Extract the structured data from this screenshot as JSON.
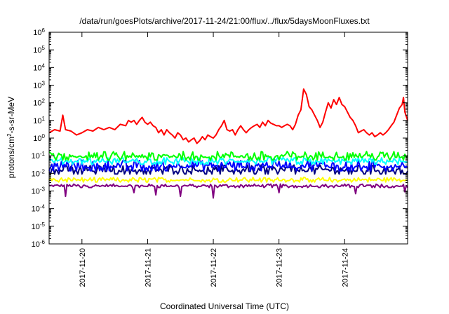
{
  "chart_data": {
    "type": "line",
    "title": "/data/run/goesPlots/archive/2017-11-24/21:00/flux/../flux/5daysMoonFluxes.txt",
    "xlabel": "Coordinated Universal Time (UTC)",
    "ylabel_parts": {
      "pre": "protons/cm",
      "sup": "2",
      "post": "-s-sr-MeV"
    },
    "y_scale": "log",
    "ylim": [
      1e-06,
      1000000.0
    ],
    "y_ticks": [
      {
        "base": "10",
        "exp": "-6",
        "value": 1e-06
      },
      {
        "base": "10",
        "exp": "-5",
        "value": 1e-05
      },
      {
        "base": "10",
        "exp": "-4",
        "value": 0.0001
      },
      {
        "base": "10",
        "exp": "-3",
        "value": 0.001
      },
      {
        "base": "10",
        "exp": "-2",
        "value": 0.01
      },
      {
        "base": "10",
        "exp": "-1",
        "value": 0.1
      },
      {
        "base": "10",
        "exp": "0",
        "value": 1
      },
      {
        "base": "10",
        "exp": "1",
        "value": 10
      },
      {
        "base": "10",
        "exp": "2",
        "value": 100
      },
      {
        "base": "10",
        "exp": "3",
        "value": 1000
      },
      {
        "base": "10",
        "exp": "4",
        "value": 10000
      },
      {
        "base": "10",
        "exp": "5",
        "value": 100000
      },
      {
        "base": "10",
        "exp": "6",
        "value": 1000000
      }
    ],
    "xlim": [
      "2017-11-19T12:00",
      "2017-11-24T23:00"
    ],
    "x_ticks": [
      {
        "label": "2017-11-20",
        "value": "2017-11-20T00:00"
      },
      {
        "label": "2017-11-21",
        "value": "2017-11-21T00:00"
      },
      {
        "label": "2017-11-22",
        "value": "2017-11-22T00:00"
      },
      {
        "label": "2017-11-23",
        "value": "2017-11-23T00:00"
      },
      {
        "label": "2017-11-24",
        "value": "2017-11-24T00:00"
      }
    ],
    "grid": false,
    "legend": "none",
    "series": [
      {
        "color": "#ff0000",
        "width": 2,
        "points": [
          [
            "2017-11-19T12:00",
            2
          ],
          [
            "2017-11-19T14:00",
            3
          ],
          [
            "2017-11-19T16:00",
            2.5
          ],
          [
            "2017-11-19T17:00",
            20
          ],
          [
            "2017-11-19T18:00",
            3
          ],
          [
            "2017-11-19T20:00",
            2.5
          ],
          [
            "2017-11-19T22:00",
            1.5
          ],
          [
            "2017-11-20T00:00",
            2
          ],
          [
            "2017-11-20T02:00",
            3
          ],
          [
            "2017-11-20T04:00",
            2.5
          ],
          [
            "2017-11-20T06:00",
            4
          ],
          [
            "2017-11-20T08:00",
            3
          ],
          [
            "2017-11-20T10:00",
            4
          ],
          [
            "2017-11-20T12:00",
            3
          ],
          [
            "2017-11-20T14:00",
            6
          ],
          [
            "2017-11-20T16:00",
            5
          ],
          [
            "2017-11-20T17:00",
            10
          ],
          [
            "2017-11-20T18:00",
            8
          ],
          [
            "2017-11-20T19:00",
            10
          ],
          [
            "2017-11-20T20:00",
            6
          ],
          [
            "2017-11-20T21:00",
            10
          ],
          [
            "2017-11-20T22:00",
            15
          ],
          [
            "2017-11-20T23:00",
            8
          ],
          [
            "2017-11-21T00:00",
            6
          ],
          [
            "2017-11-21T01:00",
            8
          ],
          [
            "2017-11-21T02:00",
            5
          ],
          [
            "2017-11-21T03:00",
            4
          ],
          [
            "2017-11-21T04:00",
            2
          ],
          [
            "2017-11-21T05:00",
            3
          ],
          [
            "2017-11-21T06:00",
            1.5
          ],
          [
            "2017-11-21T07:00",
            3
          ],
          [
            "2017-11-21T08:00",
            2
          ],
          [
            "2017-11-21T09:00",
            1.5
          ],
          [
            "2017-11-21T10:00",
            1
          ],
          [
            "2017-11-21T11:00",
            2
          ],
          [
            "2017-11-21T12:00",
            1.5
          ],
          [
            "2017-11-21T13:00",
            0.8
          ],
          [
            "2017-11-21T14:00",
            1
          ],
          [
            "2017-11-21T15:00",
            0.6
          ],
          [
            "2017-11-21T16:00",
            0.8
          ],
          [
            "2017-11-21T17:00",
            1
          ],
          [
            "2017-11-21T18:00",
            0.5
          ],
          [
            "2017-11-21T19:00",
            0.7
          ],
          [
            "2017-11-21T20:00",
            1.2
          ],
          [
            "2017-11-21T21:00",
            0.8
          ],
          [
            "2017-11-21T22:00",
            1.5
          ],
          [
            "2017-11-21T23:00",
            1.2
          ],
          [
            "2017-11-22T00:00",
            1
          ],
          [
            "2017-11-22T01:00",
            1.5
          ],
          [
            "2017-11-22T02:00",
            3
          ],
          [
            "2017-11-22T03:00",
            5
          ],
          [
            "2017-11-22T04:00",
            10
          ],
          [
            "2017-11-22T05:00",
            3
          ],
          [
            "2017-11-22T06:00",
            2.5
          ],
          [
            "2017-11-22T07:00",
            3
          ],
          [
            "2017-11-22T08:00",
            1.5
          ],
          [
            "2017-11-22T09:00",
            3
          ],
          [
            "2017-11-22T10:00",
            5
          ],
          [
            "2017-11-22T11:00",
            3
          ],
          [
            "2017-11-22T12:00",
            2
          ],
          [
            "2017-11-22T13:00",
            3
          ],
          [
            "2017-11-22T14:00",
            4
          ],
          [
            "2017-11-22T15:00",
            5
          ],
          [
            "2017-11-22T16:00",
            6
          ],
          [
            "2017-11-22T17:00",
            4
          ],
          [
            "2017-11-22T18:00",
            8
          ],
          [
            "2017-11-22T19:00",
            5
          ],
          [
            "2017-11-22T20:00",
            10
          ],
          [
            "2017-11-22T21:00",
            7
          ],
          [
            "2017-11-22T22:00",
            6
          ],
          [
            "2017-11-22T23:00",
            5
          ],
          [
            "2017-11-23T00:00",
            5
          ],
          [
            "2017-11-23T01:00",
            4
          ],
          [
            "2017-11-23T02:00",
            5
          ],
          [
            "2017-11-23T03:00",
            6
          ],
          [
            "2017-11-23T04:00",
            5
          ],
          [
            "2017-11-23T05:00",
            3
          ],
          [
            "2017-11-23T06:00",
            6
          ],
          [
            "2017-11-23T07:00",
            20
          ],
          [
            "2017-11-23T08:00",
            40
          ],
          [
            "2017-11-23T09:00",
            600
          ],
          [
            "2017-11-23T10:00",
            300
          ],
          [
            "2017-11-23T11:00",
            60
          ],
          [
            "2017-11-23T12:00",
            40
          ],
          [
            "2017-11-23T13:00",
            20
          ],
          [
            "2017-11-23T14:00",
            10
          ],
          [
            "2017-11-23T15:00",
            4
          ],
          [
            "2017-11-23T16:00",
            8
          ],
          [
            "2017-11-23T17:00",
            30
          ],
          [
            "2017-11-23T18:00",
            100
          ],
          [
            "2017-11-23T19:00",
            50
          ],
          [
            "2017-11-23T20:00",
            150
          ],
          [
            "2017-11-23T21:00",
            80
          ],
          [
            "2017-11-23T22:00",
            200
          ],
          [
            "2017-11-23T23:00",
            80
          ],
          [
            "2017-11-24T00:00",
            60
          ],
          [
            "2017-11-24T01:00",
            30
          ],
          [
            "2017-11-24T02:00",
            15
          ],
          [
            "2017-11-24T03:00",
            10
          ],
          [
            "2017-11-24T04:00",
            5
          ],
          [
            "2017-11-24T05:00",
            2
          ],
          [
            "2017-11-24T06:00",
            2.5
          ],
          [
            "2017-11-24T07:00",
            3
          ],
          [
            "2017-11-24T08:00",
            2
          ],
          [
            "2017-11-24T09:00",
            1.5
          ],
          [
            "2017-11-24T10:00",
            2
          ],
          [
            "2017-11-24T11:00",
            1.2
          ],
          [
            "2017-11-24T12:00",
            1.5
          ],
          [
            "2017-11-24T13:00",
            2
          ],
          [
            "2017-11-24T14:00",
            1.5
          ],
          [
            "2017-11-24T15:00",
            2
          ],
          [
            "2017-11-24T16:00",
            3
          ],
          [
            "2017-11-24T17:00",
            5
          ],
          [
            "2017-11-24T18:00",
            8
          ],
          [
            "2017-11-24T19:00",
            20
          ],
          [
            "2017-11-24T20:00",
            50
          ],
          [
            "2017-11-24T21:00",
            80
          ],
          [
            "2017-11-24T21:30",
            200
          ],
          [
            "2017-11-24T22:00",
            30
          ],
          [
            "2017-11-24T23:00",
            10
          ]
        ]
      },
      {
        "color": "#00ff00",
        "width": 2,
        "band": [
          0.05,
          0.18
        ]
      },
      {
        "color": "#00ffff",
        "width": 2,
        "band": [
          0.03,
          0.08
        ]
      },
      {
        "color": "#0000ff",
        "width": 2,
        "band": [
          0.012,
          0.06
        ]
      },
      {
        "color": "#000080",
        "width": 2,
        "band": [
          0.008,
          0.03
        ]
      },
      {
        "color": "#ffff00",
        "width": 2,
        "band": [
          0.003,
          0.006
        ]
      },
      {
        "color": "#800080",
        "width": 2,
        "band": [
          0.0015,
          0.0025
        ],
        "dips": [
          {
            "x": "2017-11-19T18:00",
            "y": 0.0005
          },
          {
            "x": "2017-11-20T19:00",
            "y": 0.0008
          },
          {
            "x": "2017-11-21T03:00",
            "y": 0.0006
          },
          {
            "x": "2017-11-21T12:00",
            "y": 0.0005
          },
          {
            "x": "2017-11-22T00:00",
            "y": 0.0004
          },
          {
            "x": "2017-11-23T00:00",
            "y": 0.0008
          },
          {
            "x": "2017-11-24T04:00",
            "y": 0.0007
          },
          {
            "x": "2017-11-24T22:00",
            "y": 0.0009
          }
        ]
      }
    ]
  }
}
